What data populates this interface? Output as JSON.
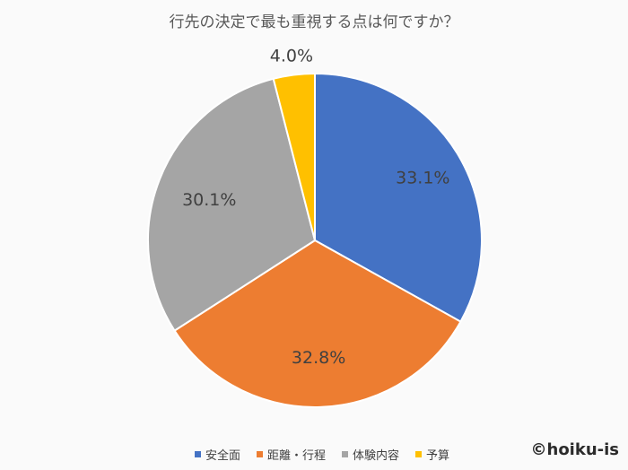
{
  "credit": "©hoiku-is",
  "chart_data": {
    "type": "pie",
    "title": "行先の決定で最も重視する点は何ですか？",
    "categories": [
      "安全面",
      "距離・行程",
      "体験内容",
      "予算"
    ],
    "values": [
      33.1,
      32.8,
      30.1,
      4.0
    ],
    "labels": [
      "33.1%",
      "32.8%",
      "30.1%",
      "4.0%"
    ],
    "colors": [
      "#4472c4",
      "#ed7d31",
      "#a5a5a5",
      "#ffc000"
    ],
    "legend_position": "bottom",
    "start_angle": "12 o'clock",
    "direction": "clockwise"
  }
}
